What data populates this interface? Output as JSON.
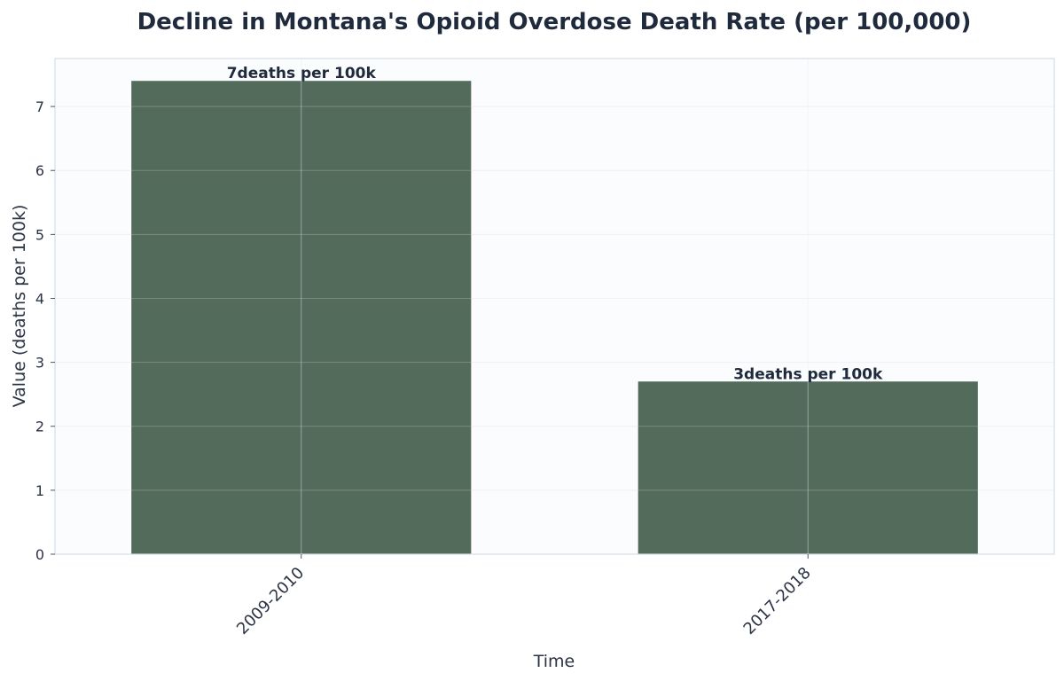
{
  "chart_data": {
    "type": "bar",
    "title": "Decline in Montana's Opioid Overdose Death Rate (per 100,000)",
    "xlabel": "Time",
    "ylabel": "Value (deaths per 100k)",
    "categories": [
      "2009-2010",
      "2017-2018"
    ],
    "values": [
      7.4,
      2.7
    ],
    "data_labels": [
      "7deaths per 100k",
      "3deaths per 100k"
    ],
    "ylim": [
      0,
      7.75
    ],
    "yticks": [
      "0",
      "1",
      "2",
      "3",
      "4",
      "5",
      "6",
      "7"
    ],
    "grid": true,
    "legend": "none",
    "colors": {
      "bar": "#536b5b",
      "plot_background": "#fbfcfd",
      "frame": "#d5dee6",
      "text": "#1f2a3c"
    }
  }
}
